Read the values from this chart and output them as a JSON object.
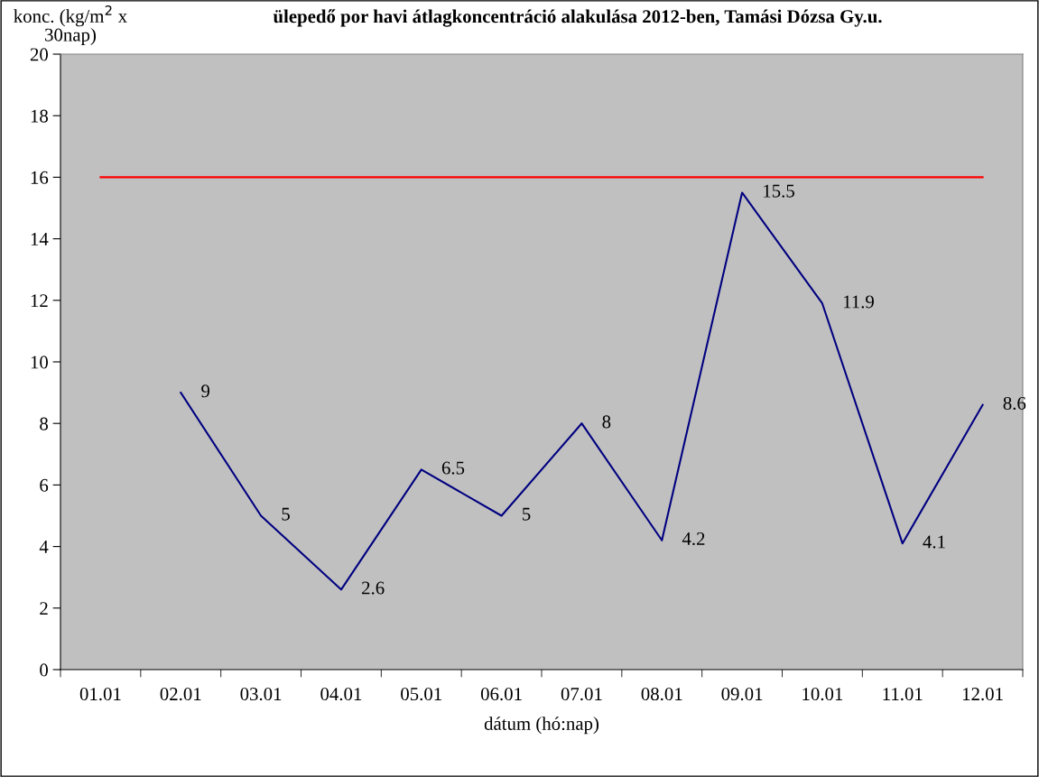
{
  "chart_data": {
    "type": "line",
    "title": "ülepedő por havi átlagkoncentráció alakulása 2012-ben, Tamási Dózsa Gy.u.",
    "ylabel": "konc. (kg/m$^{2}$ x\n30nap)",
    "xlabel": "dátum (hó:nap)",
    "categories": [
      "01.01",
      "02.01",
      "03.01",
      "04.01",
      "05.01",
      "06.01",
      "07.01",
      "08.01",
      "09.01",
      "10.01",
      "11.01",
      "12.01"
    ],
    "series": [
      {
        "color": "#000080",
        "values": [
          null,
          9,
          5,
          2.6,
          6.5,
          5,
          8,
          4.2,
          15.5,
          11.9,
          4.1,
          8.6
        ],
        "value_labels": [
          null,
          "9",
          "5",
          "2.6",
          "6.5",
          "5",
          "8",
          "4.2",
          "15.5",
          "11.9",
          "4.1",
          "8.6"
        ]
      },
      {
        "color": "#ff0000",
        "values": [
          16,
          16,
          16,
          16,
          16,
          16,
          16,
          16,
          16,
          16,
          16,
          16
        ]
      }
    ],
    "ylim": [
      0,
      20
    ],
    "yticks": [
      0,
      2,
      4,
      6,
      8,
      10,
      12,
      14,
      16,
      18,
      20
    ],
    "grid": false,
    "marker": "none",
    "line_style": "solid"
  }
}
